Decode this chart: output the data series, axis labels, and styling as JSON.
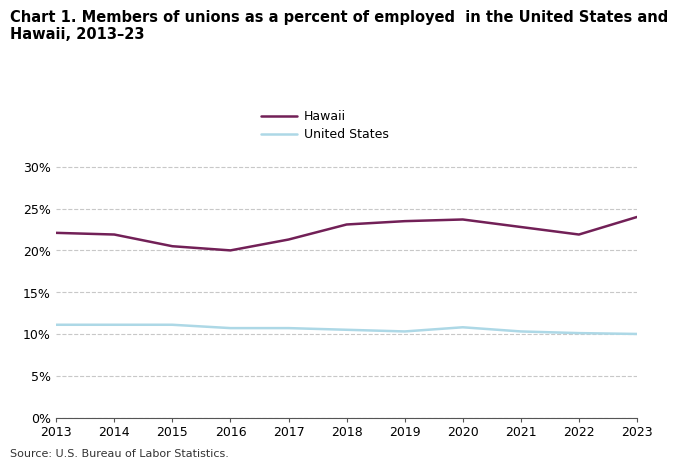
{
  "title_line1": "Chart 1. Members of unions as a percent of employed  in the United States and",
  "title_line2": "Hawaii, 2013–23",
  "years": [
    2013,
    2014,
    2015,
    2016,
    2017,
    2018,
    2019,
    2020,
    2021,
    2022,
    2023
  ],
  "hawaii": [
    22.1,
    21.9,
    20.5,
    20.0,
    21.3,
    23.1,
    23.5,
    23.7,
    22.8,
    21.9,
    24.0
  ],
  "us": [
    11.1,
    11.1,
    11.1,
    10.7,
    10.7,
    10.5,
    10.3,
    10.8,
    10.3,
    10.1,
    10.0
  ],
  "hawaii_color": "#722057",
  "us_color": "#add8e6",
  "hawaii_label": "Hawaii",
  "us_label": "United States",
  "ylim": [
    0,
    32
  ],
  "yticks": [
    0,
    5,
    10,
    15,
    20,
    25,
    30
  ],
  "ytick_labels": [
    "0%",
    "5%",
    "10%",
    "15%",
    "20%",
    "25%",
    "30%"
  ],
  "source": "Source: U.S. Bureau of Labor Statistics.",
  "background_color": "#ffffff",
  "grid_color": "#c8c8c8",
  "line_width": 1.8,
  "tick_fontsize": 9,
  "source_fontsize": 8,
  "title_fontsize": 10.5
}
